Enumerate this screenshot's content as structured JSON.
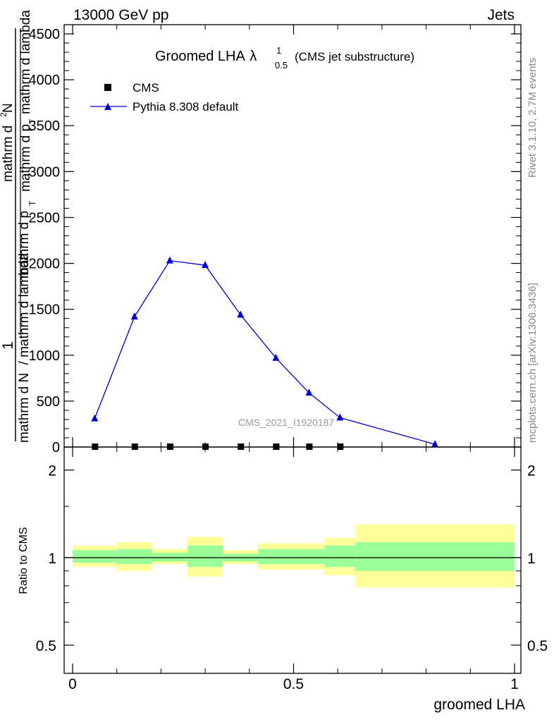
{
  "header": {
    "left": "13000 GeV pp",
    "right": "Jets"
  },
  "side": {
    "rivet": "Rivet 3.1.10,  2.7M events",
    "mcplots": "mcplots.cern.ch [arXiv:1306.3436]"
  },
  "chart_data": [
    {
      "type": "line",
      "title_main": "Groomed LHA",
      "title_lambda": "λ",
      "title_sup": "1",
      "title_sub": "0.5",
      "title_note": "(CMS jet substructure)",
      "analysis_label": "CMS_2021_I1920187",
      "ylabel_parts": {
        "one": "1",
        "outer_left": "mathrm d N",
        "outer_right": "/ mathrm d lambda",
        "mid": "mathrm d p",
        "mid_sub": "T",
        "num_top": "mathrm d",
        "num_sup": "2",
        "num_n": "N",
        "den": "mathrm d p",
        "den_sub": "T",
        "den_tail": "mathrm d lambda"
      },
      "xlim": [
        0,
        1
      ],
      "ylim": [
        0,
        4600
      ],
      "yticks": [
        0,
        500,
        1000,
        1500,
        2000,
        2500,
        3000,
        3500,
        4000,
        4500
      ],
      "ytick_labels": [
        "0",
        "500",
        "1000",
        "1500",
        "2000",
        "2500",
        "3000",
        "3500",
        "4000",
        "4500"
      ],
      "legend": {
        "position": "top-left",
        "entries": [
          "CMS",
          "Pythia 8.308 default"
        ]
      },
      "series": [
        {
          "name": "CMS",
          "marker": "square",
          "color": "#000000",
          "x": [
            0.05,
            0.14,
            0.22,
            0.3,
            0.38,
            0.46,
            0.535,
            0.605
          ],
          "y": [
            0,
            0,
            0,
            0,
            0,
            0,
            0,
            0
          ]
        },
        {
          "name": "Pythia 8.308 default",
          "marker": "triangle",
          "color": "#0000cc",
          "x": [
            0.05,
            0.14,
            0.22,
            0.3,
            0.38,
            0.46,
            0.535,
            0.605,
            0.82
          ],
          "y": [
            310,
            1420,
            2030,
            1980,
            1440,
            970,
            590,
            320,
            30
          ]
        }
      ]
    },
    {
      "type": "area",
      "ylabel": "Ratio to CMS",
      "xlabel": "groomed LHA",
      "xlim": [
        0,
        1
      ],
      "ylim": [
        0.4,
        2.4
      ],
      "log_y": true,
      "xticks": [
        0,
        0.5,
        1
      ],
      "xtick_labels": [
        "0",
        "0.5",
        "1"
      ],
      "yticks": [
        0.5,
        1,
        2
      ],
      "ytick_labels": [
        "0.5",
        "1",
        "2"
      ],
      "bins": [
        {
          "lo": 0.0,
          "hi": 0.1,
          "stat_lo": 0.96,
          "stat_hi": 1.06,
          "tot_lo": 0.93,
          "tot_hi": 1.1
        },
        {
          "lo": 0.1,
          "hi": 0.18,
          "stat_lo": 0.95,
          "stat_hi": 1.07,
          "tot_lo": 0.9,
          "tot_hi": 1.13
        },
        {
          "lo": 0.18,
          "hi": 0.26,
          "stat_lo": 0.97,
          "stat_hi": 1.04,
          "tot_lo": 0.95,
          "tot_hi": 1.07
        },
        {
          "lo": 0.26,
          "hi": 0.34,
          "stat_lo": 0.93,
          "stat_hi": 1.1,
          "tot_lo": 0.86,
          "tot_hi": 1.18
        },
        {
          "lo": 0.34,
          "hi": 0.42,
          "stat_lo": 0.97,
          "stat_hi": 1.03,
          "tot_lo": 0.95,
          "tot_hi": 1.06
        },
        {
          "lo": 0.42,
          "hi": 0.57,
          "stat_lo": 0.95,
          "stat_hi": 1.07,
          "tot_lo": 0.91,
          "tot_hi": 1.12
        },
        {
          "lo": 0.57,
          "hi": 0.64,
          "stat_lo": 0.93,
          "stat_hi": 1.1,
          "tot_lo": 0.87,
          "tot_hi": 1.17
        },
        {
          "lo": 0.64,
          "hi": 1.0,
          "stat_lo": 0.9,
          "stat_hi": 1.13,
          "tot_lo": 0.79,
          "tot_hi": 1.3
        }
      ],
      "stat_color": "#99ff99",
      "total_color": "#ffff99"
    }
  ]
}
